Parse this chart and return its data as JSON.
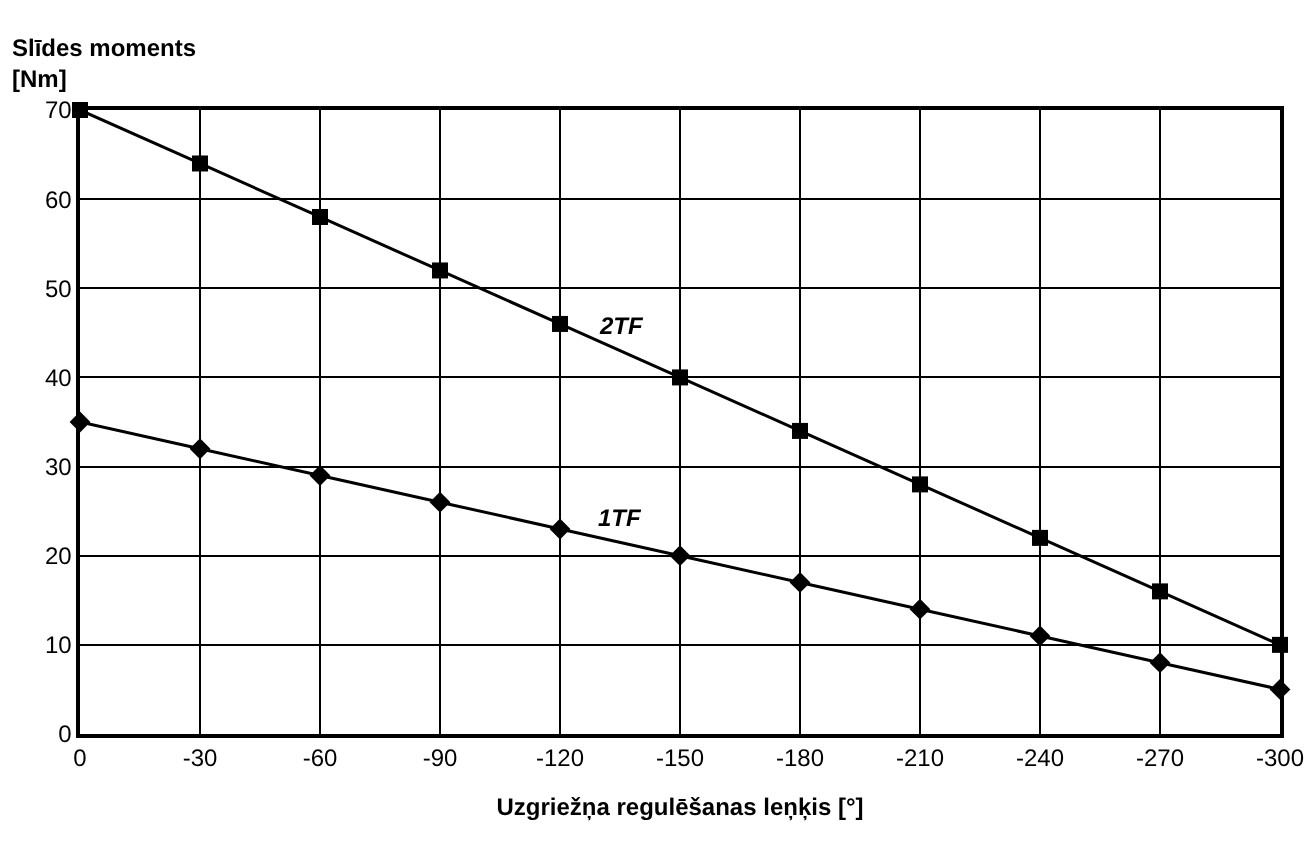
{
  "chart_data": {
    "type": "line",
    "ylabel": "Slīdes moments\n[Nm]",
    "xlabel": "Uzgriežņa regulēšanas leņķis [°]",
    "x": [
      0,
      -30,
      -60,
      -90,
      -120,
      -150,
      -180,
      -210,
      -240,
      -270,
      -300
    ],
    "series": [
      {
        "name": "2TF",
        "color": "#000000",
        "marker": "square",
        "values": [
          70,
          64,
          58,
          52,
          46,
          40,
          34,
          28,
          22,
          16,
          10
        ]
      },
      {
        "name": "1TF",
        "color": "#000000",
        "marker": "diamond",
        "values": [
          35,
          32,
          29,
          26,
          23,
          20,
          17,
          14,
          11,
          8,
          5
        ]
      }
    ],
    "xlim": [
      0,
      -300
    ],
    "xticks": [
      0,
      -30,
      -60,
      -90,
      -120,
      -150,
      -180,
      -210,
      -240,
      -270,
      -300
    ],
    "ylim": [
      0,
      70
    ],
    "yticks": [
      0,
      10,
      20,
      30,
      40,
      50,
      60,
      70
    ],
    "grid": true,
    "legend": false,
    "line_style": "solid"
  }
}
